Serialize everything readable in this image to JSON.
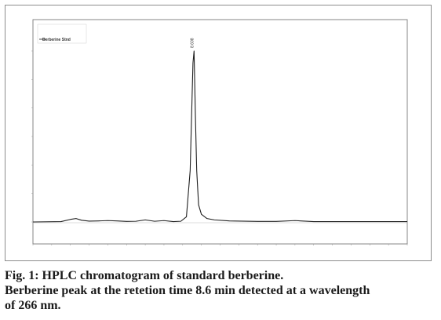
{
  "caption": {
    "line1": "Fig. 1: HPLC chromatogram of standard berberine.",
    "line2": "Berberine peak at the retetion time 8.6 min detected at a wavelength",
    "line3": "of 266 nm."
  },
  "chart_data": {
    "type": "line",
    "title": "",
    "xlabel": "",
    "ylabel": "",
    "legend_entries": [
      "Berberine Stnd"
    ],
    "legend_placement": "top-left",
    "peak_label": "8.608",
    "xlim": [
      0,
      20
    ],
    "ylim": [
      0,
      1
    ],
    "grid": false,
    "series": [
      {
        "x": [
          0,
          1.5,
          2.0,
          2.3,
          2.6,
          3.0,
          3.5,
          4.0,
          4.5,
          5.0,
          5.5,
          6.0,
          6.5,
          7.0,
          7.5,
          7.9,
          8.2,
          8.4,
          8.5,
          8.55,
          8.608,
          8.68,
          8.75,
          8.85,
          9.0,
          9.3,
          9.7,
          10.5,
          12.0,
          13.0,
          14.0,
          15.0,
          20.0
        ],
        "y": [
          0.0,
          0.002,
          0.015,
          0.02,
          0.01,
          0.005,
          0.006,
          0.008,
          0.006,
          0.003,
          0.004,
          0.012,
          0.004,
          0.008,
          0.002,
          0.004,
          0.03,
          0.3,
          0.72,
          0.93,
          1.0,
          0.62,
          0.3,
          0.1,
          0.045,
          0.02,
          0.012,
          0.006,
          0.003,
          0.003,
          0.008,
          0.002,
          0.002
        ]
      }
    ]
  }
}
